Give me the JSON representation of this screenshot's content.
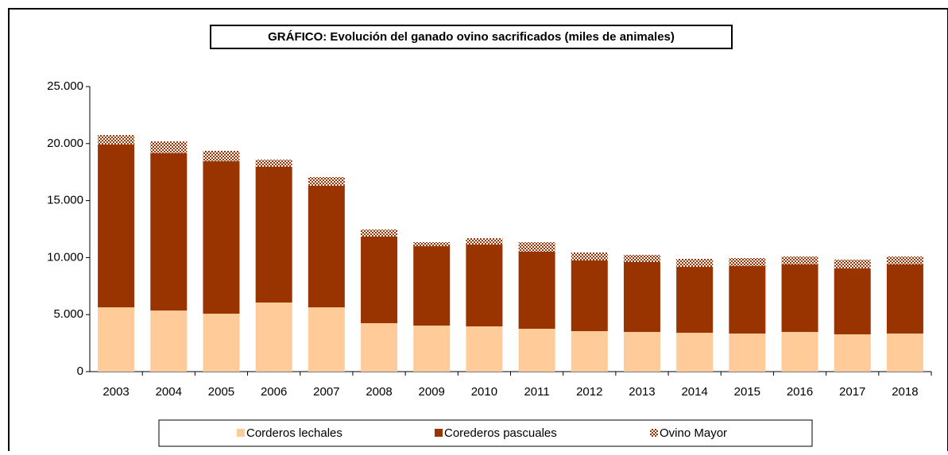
{
  "chart_data": {
    "type": "stacked_bar",
    "title": "GRÁFICO: Evolución del ganado ovino sacrificados (miles de animales)",
    "categories": [
      "2003",
      "2004",
      "2005",
      "2006",
      "2007",
      "2008",
      "2009",
      "2010",
      "2011",
      "2012",
      "2013",
      "2014",
      "2015",
      "2016",
      "2017",
      "2018"
    ],
    "series": [
      {
        "name": "Corderos lechales",
        "color": "#ffcc99",
        "values": [
          5640,
          5360,
          5080,
          6060,
          5640,
          4250,
          4040,
          3970,
          3760,
          3550,
          3480,
          3410,
          3340,
          3480,
          3270,
          3340
        ]
      },
      {
        "name": "Corederos pascuales",
        "color": "#993300",
        "values": [
          14280,
          13790,
          13370,
          11910,
          10660,
          7590,
          6960,
          7170,
          6760,
          6200,
          6130,
          5780,
          5920,
          5920,
          5780,
          6060
        ]
      },
      {
        "name": "Ovino Mayor",
        "color": "#993300",
        "pattern": "dotted",
        "values": [
          830,
          1040,
          910,
          620,
          760,
          630,
          350,
          560,
          830,
          700,
          630,
          700,
          700,
          700,
          770,
          700
        ]
      }
    ],
    "ylim": [
      0,
      25000
    ],
    "yticks": [
      0,
      {
        "value": 5000,
        "label": "5.000"
      },
      {
        "value": 10000,
        "label": "10.000"
      },
      {
        "value": 15000,
        "label": "15.000"
      },
      {
        "value": 20000,
        "label": "20.000"
      },
      {
        "value": 25000,
        "label": "25.000"
      }
    ],
    "grid": false,
    "legend": "bottom"
  }
}
